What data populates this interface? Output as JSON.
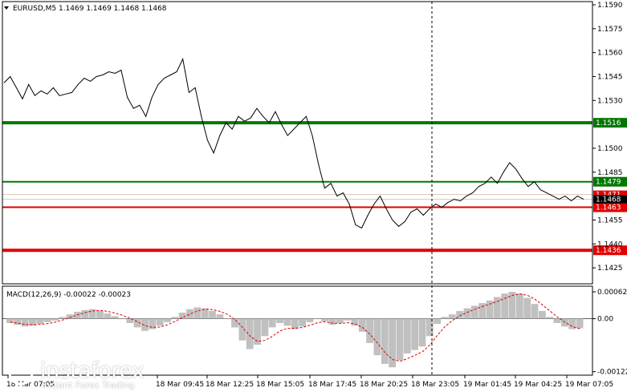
{
  "chart_data": [
    {
      "type": "line",
      "symbol_info": "EURUSD,M5  1.1469 1.1469 1.1468 1.1468",
      "ylim": [
        1.1415,
        1.1592
      ],
      "yticks": [
        "1.1590",
        "1.1575",
        "1.1560",
        "1.1545",
        "1.1530",
        "1.1500",
        "1.1485",
        "1.1455",
        "1.1440",
        "1.1425"
      ],
      "xticks": [
        "18 Mar 07:05",
        "18 Mar 09:45",
        "18 Mar 12:25",
        "18 Mar 15:05",
        "18 Mar 17:45",
        "18 Mar 20:25",
        "18 Mar 23:05",
        "19 Mar 01:45",
        "19 Mar 04:25",
        "19 Mar 07:05"
      ],
      "price_series": [
        1.1541,
        1.1545,
        1.1538,
        1.1531,
        1.154,
        1.1533,
        1.1536,
        1.1534,
        1.1538,
        1.1533,
        1.1534,
        1.1535,
        1.154,
        1.1544,
        1.1542,
        1.1545,
        1.1546,
        1.1548,
        1.1547,
        1.1549,
        1.1532,
        1.1525,
        1.1527,
        1.152,
        1.1532,
        1.154,
        1.1544,
        1.1546,
        1.1548,
        1.1556,
        1.1535,
        1.1538,
        1.152,
        1.1505,
        1.1497,
        1.1508,
        1.1516,
        1.1512,
        1.152,
        1.1517,
        1.1519,
        1.1525,
        1.152,
        1.1516,
        1.1523,
        1.1515,
        1.1508,
        1.1512,
        1.1516,
        1.152,
        1.1508,
        1.149,
        1.1475,
        1.1478,
        1.147,
        1.1472,
        1.1465,
        1.1452,
        1.145,
        1.1458,
        1.1465,
        1.147,
        1.1462,
        1.1455,
        1.1451,
        1.1454,
        1.146,
        1.1462,
        1.1458,
        1.1462,
        1.1465,
        1.1463,
        1.1466,
        1.1468,
        1.1467,
        1.147,
        1.1472,
        1.1476,
        1.1478,
        1.1482,
        1.1478,
        1.1485,
        1.1491,
        1.1487,
        1.1481,
        1.1476,
        1.1479,
        1.1474,
        1.1472,
        1.147,
        1.1468,
        1.147,
        1.1467,
        1.147,
        1.1468
      ],
      "levels": [
        {
          "label": "1.1516",
          "price": 1.1516,
          "color": "#007800",
          "width": 4
        },
        {
          "label": "1.1479",
          "price": 1.1479,
          "color": "#007800",
          "width": 2
        },
        {
          "label": "1.1463",
          "price": 1.1463,
          "color": "#e00000",
          "width": 2
        },
        {
          "label": "1.1436",
          "price": 1.1436,
          "color": "#e00000",
          "width": 4
        }
      ],
      "price_tags": [
        {
          "label": "1.1471",
          "price": 1.1471,
          "color": "#e00000"
        },
        {
          "label": "1.1468",
          "price": 1.1468,
          "color": "#000000"
        }
      ],
      "grid": false
    },
    {
      "type": "bar",
      "title": "MACD(12,26,9) -0.00022 -0.00023",
      "ylim": [
        -0.0013,
        0.00075
      ],
      "yticks": [
        "0.00062",
        "0.00",
        "-0.00122"
      ],
      "histogram": [
        -0.0001,
        -0.00014,
        -0.00018,
        -0.00016,
        -0.00012,
        -8e-05,
        -4e-05,
        4e-05,
        0.0001,
        0.00016,
        0.0002,
        0.00022,
        0.00018,
        0.00012,
        6e-05,
        0.0,
        -0.0001,
        -0.0002,
        -0.00028,
        -0.00024,
        -0.00016,
        -8e-05,
        4e-05,
        0.00014,
        0.00022,
        0.00026,
        0.00024,
        0.00018,
        0.0001,
        0.0,
        -0.0002,
        -0.0005,
        -0.0007,
        -0.0006,
        -0.0004,
        -0.0002,
        -0.0001,
        -0.00016,
        -0.00024,
        -0.00018,
        -8e-05,
        0.0,
        -6e-05,
        -0.00014,
        -0.0001,
        -4e-05,
        -0.00016,
        -0.0003,
        -0.00056,
        -0.00084,
        -0.00104,
        -0.00112,
        -0.00096,
        -0.0008,
        -0.00072,
        -0.00064,
        -0.0004,
        -0.00012,
        4e-05,
        0.0001,
        0.00018,
        0.00024,
        0.0003,
        0.00036,
        0.00042,
        0.0005,
        0.00058,
        0.00062,
        0.00058,
        0.00048,
        0.00034,
        0.00018,
        4e-05,
        -0.0001,
        -0.00018,
        -0.00024,
        -0.00022
      ],
      "signal": [
        -8e-05,
        -0.0001,
        -0.00013,
        -0.00014,
        -0.00013,
        -0.00011,
        -8e-05,
        -3e-05,
        3e-05,
        9e-05,
        0.00014,
        0.00018,
        0.00019,
        0.00017,
        0.00013,
        8e-05,
        1e-05,
        -7e-05,
        -0.00016,
        -0.0002,
        -0.00019,
        -0.00014,
        -6e-05,
        3e-05,
        0.00011,
        0.00018,
        0.00022,
        0.00021,
        0.00017,
        0.0001,
        -2e-05,
        -0.0002,
        -0.0004,
        -0.00052,
        -0.0005,
        -0.0004,
        -0.00028,
        -0.00022,
        -0.00022,
        -0.0002,
        -0.00015,
        -9e-05,
        -7e-05,
        -0.0001,
        -0.00011,
        -9e-05,
        -0.00012,
        -0.0002,
        -0.00036,
        -0.00056,
        -0.00078,
        -0.00094,
        -0.00098,
        -0.00092,
        -0.00084,
        -0.00076,
        -0.0006,
        -0.00038,
        -0.00018,
        -4e-05,
        7e-05,
        0.00015,
        0.00022,
        0.00028,
        0.00034,
        0.0004,
        0.00047,
        0.00054,
        0.00057,
        0.00054,
        0.00045,
        0.00032,
        0.00018,
        4e-05,
        -8e-05,
        -0.00018,
        -0.00023
      ],
      "bar_color": "#c0c0c0",
      "signal_color": "#e00000"
    }
  ],
  "watermark": {
    "brand": "instaforex",
    "tagline": "Instant Forex Trading"
  },
  "colors": {
    "axis": "#000000",
    "cursor": "#000000"
  }
}
